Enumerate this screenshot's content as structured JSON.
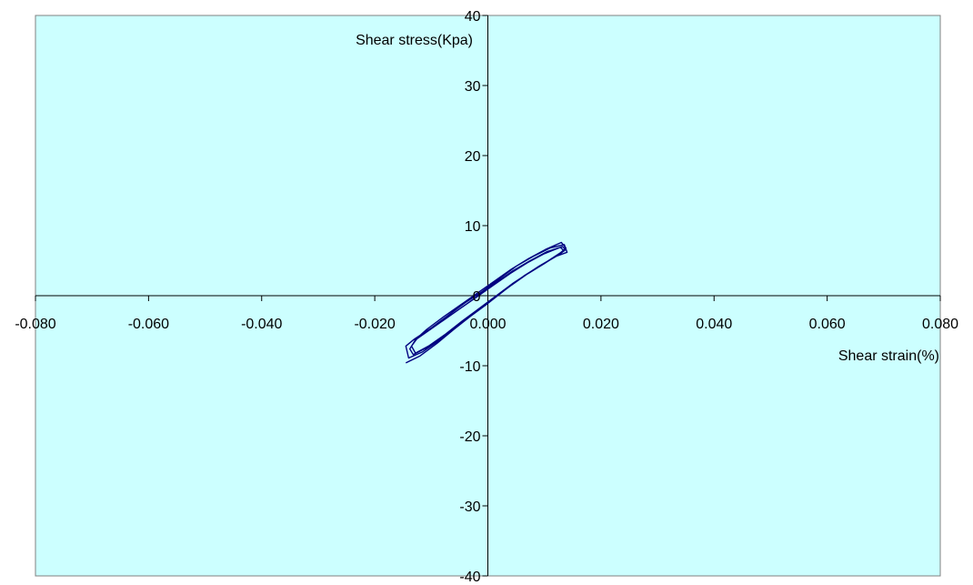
{
  "chart_data": {
    "type": "line",
    "title": "",
    "xlabel": "Shear strain(%)",
    "ylabel": "Shear stress(Kpa)",
    "xlim": [
      -0.08,
      0.08
    ],
    "ylim": [
      -40,
      40
    ],
    "x_ticks": [
      -0.08,
      -0.06,
      -0.04,
      -0.02,
      0.0,
      0.02,
      0.04,
      0.06,
      0.08
    ],
    "x_tick_labels": [
      "-0.080",
      "-0.060",
      "-0.040",
      "-0.020",
      "0.000",
      "0.020",
      "0.040",
      "0.060",
      "0.080"
    ],
    "y_ticks": [
      -40,
      -30,
      -20,
      -10,
      0,
      10,
      20,
      30,
      40
    ],
    "y_tick_labels": [
      "-40",
      "-30",
      "-20",
      "-10",
      "0",
      "10",
      "20",
      "30",
      "40"
    ],
    "grid": false,
    "legend": "none",
    "plot_background": "#ccffff",
    "series": [
      {
        "color": "#000080",
        "x": [
          -0.0145,
          -0.012,
          -0.009,
          -0.006,
          -0.003,
          0.0,
          0.003,
          0.006,
          0.009,
          0.012,
          0.014,
          0.0135,
          0.011,
          0.008,
          0.005,
          0.002,
          -0.001,
          -0.004,
          -0.007,
          -0.01,
          -0.013,
          -0.0145,
          -0.014,
          -0.0115,
          -0.0085,
          -0.0055,
          -0.0025,
          0.0005,
          0.0035,
          0.0065,
          0.0095,
          0.0125,
          0.0138,
          0.0132,
          0.0105,
          0.0075,
          0.0045,
          0.0015,
          -0.0015,
          -0.0045,
          -0.0075,
          -0.0105,
          -0.0128,
          -0.0138,
          -0.0132,
          -0.011,
          -0.008,
          -0.005,
          -0.002,
          0.001,
          0.004,
          0.007,
          0.01,
          0.0125,
          0.0135,
          0.0128,
          0.01,
          0.007,
          0.004,
          0.001,
          -0.002,
          -0.005,
          -0.008,
          -0.011,
          -0.0125,
          -0.0135,
          -0.0128,
          -0.0105,
          -0.0075,
          -0.0045,
          -0.0015,
          0.0015,
          0.0045,
          0.0075,
          0.0105,
          0.0128,
          0.0138,
          0.013,
          0.0102,
          0.0072,
          0.0042,
          0.0012,
          -0.0018,
          -0.0048,
          -0.0078,
          -0.0108,
          -0.013
        ],
        "y": [
          -9.6,
          -8.6,
          -6.8,
          -4.8,
          -2.9,
          -1.1,
          0.8,
          2.6,
          4.2,
          5.6,
          6.2,
          7.3,
          6.8,
          5.6,
          4.2,
          2.4,
          0.6,
          -1.0,
          -2.8,
          -4.6,
          -6.2,
          -7.2,
          -8.9,
          -8.0,
          -6.3,
          -4.4,
          -2.5,
          -0.7,
          1.1,
          2.9,
          4.4,
          5.8,
          6.6,
          7.0,
          6.3,
          5.0,
          3.6,
          1.9,
          0.1,
          -1.6,
          -3.3,
          -5.0,
          -6.3,
          -7.6,
          -8.4,
          -7.5,
          -5.8,
          -4.0,
          -2.1,
          -0.3,
          1.4,
          3.1,
          4.6,
          5.9,
          6.4,
          6.9,
          6.0,
          4.7,
          3.2,
          1.5,
          -0.2,
          -1.9,
          -3.6,
          -5.2,
          -6.1,
          -7.2,
          -8.2,
          -7.2,
          -5.5,
          -3.6,
          -1.8,
          0.0,
          1.8,
          3.4,
          4.9,
          6.1,
          6.8,
          7.6,
          6.6,
          5.3,
          3.8,
          2.1,
          0.4,
          -1.3,
          -3.0,
          -4.8,
          -6.4
        ]
      }
    ]
  }
}
